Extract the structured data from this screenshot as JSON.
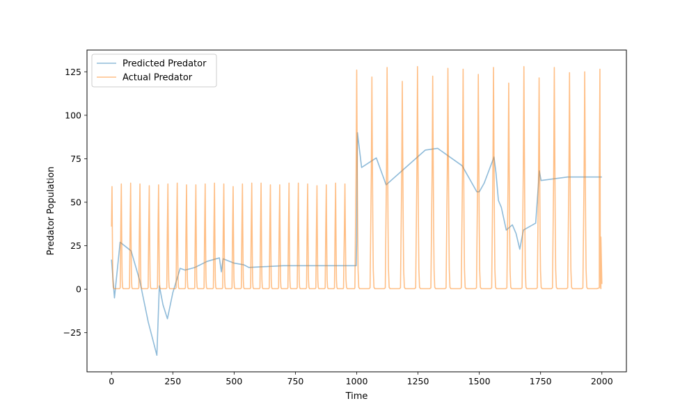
{
  "chart_data": {
    "type": "line",
    "title": "",
    "xlabel": "Time",
    "ylabel": "Predator Population",
    "xlim": [
      -100,
      2100
    ],
    "ylim": [
      -47.5,
      137.5
    ],
    "xticks": [
      {
        "value": 0,
        "label": "0"
      },
      {
        "value": 250,
        "label": "250"
      },
      {
        "value": 500,
        "label": "500"
      },
      {
        "value": 750,
        "label": "750"
      },
      {
        "value": 1000,
        "label": "1000"
      },
      {
        "value": 1250,
        "label": "1250"
      },
      {
        "value": 1500,
        "label": "1500"
      },
      {
        "value": 1750,
        "label": "1750"
      },
      {
        "value": 2000,
        "label": "2000"
      }
    ],
    "yticks": [
      {
        "value": -25,
        "label": "−25"
      },
      {
        "value": 0,
        "label": "0"
      },
      {
        "value": 25,
        "label": "25"
      },
      {
        "value": 50,
        "label": "50"
      },
      {
        "value": 75,
        "label": "75"
      },
      {
        "value": 100,
        "label": "100"
      },
      {
        "value": 125,
        "label": "125"
      }
    ],
    "grid": false,
    "legend_position": "top-left",
    "series": [
      {
        "name": "Predicted Predator",
        "color": "#1f77b4",
        "x": [
          0,
          12,
          35,
          80,
          115,
          150,
          185,
          195,
          210,
          228,
          250,
          280,
          300,
          340,
          390,
          440,
          448,
          455,
          500,
          540,
          560,
          700,
          850,
          998,
          1000,
          1003,
          1020,
          1080,
          1120,
          1280,
          1330,
          1430,
          1490,
          1500,
          1520,
          1560,
          1568,
          1578,
          1590,
          1610,
          1635,
          1650,
          1665,
          1680,
          1730,
          1745,
          1752,
          1860,
          2000
        ],
        "y": [
          17,
          -5,
          27,
          22,
          5,
          -19,
          -38,
          2,
          -9,
          -17,
          -2,
          12,
          11,
          12.5,
          16,
          18,
          10,
          17.5,
          15,
          14,
          12.5,
          13.5,
          13.5,
          13.5,
          28,
          90,
          70,
          75.5,
          60,
          80,
          81,
          71,
          56,
          56,
          61,
          76,
          67,
          51,
          47,
          34,
          37,
          32,
          23,
          34,
          38,
          68,
          62.5,
          64.5,
          64.5
        ]
      },
      {
        "name": "Actual Predator",
        "color": "#ff7f0e",
        "generator": "pulse-train",
        "baseline": 0.3,
        "start_value": 36,
        "end_value": 3,
        "peaks": [
          {
            "x": 2,
            "y": 59
          },
          {
            "x": 40,
            "y": 60.5
          },
          {
            "x": 78,
            "y": 61
          },
          {
            "x": 116,
            "y": 60.5
          },
          {
            "x": 154,
            "y": 59.5
          },
          {
            "x": 192,
            "y": 60
          },
          {
            "x": 230,
            "y": 60.5
          },
          {
            "x": 268,
            "y": 61
          },
          {
            "x": 306,
            "y": 60
          },
          {
            "x": 344,
            "y": 60
          },
          {
            "x": 382,
            "y": 60.5
          },
          {
            "x": 420,
            "y": 61
          },
          {
            "x": 458,
            "y": 60.5
          },
          {
            "x": 496,
            "y": 59
          },
          {
            "x": 534,
            "y": 60.5
          },
          {
            "x": 572,
            "y": 61
          },
          {
            "x": 610,
            "y": 61
          },
          {
            "x": 648,
            "y": 60
          },
          {
            "x": 686,
            "y": 60
          },
          {
            "x": 724,
            "y": 61
          },
          {
            "x": 762,
            "y": 61
          },
          {
            "x": 800,
            "y": 60.5
          },
          {
            "x": 838,
            "y": 59.5
          },
          {
            "x": 876,
            "y": 60
          },
          {
            "x": 914,
            "y": 61
          },
          {
            "x": 952,
            "y": 60.5
          },
          {
            "x": 1000,
            "y": 126
          },
          {
            "x": 1062,
            "y": 122
          },
          {
            "x": 1124,
            "y": 127.5
          },
          {
            "x": 1186,
            "y": 119.5
          },
          {
            "x": 1248,
            "y": 128
          },
          {
            "x": 1310,
            "y": 122.5
          },
          {
            "x": 1372,
            "y": 127
          },
          {
            "x": 1434,
            "y": 126.5
          },
          {
            "x": 1496,
            "y": 123.5
          },
          {
            "x": 1558,
            "y": 127.5
          },
          {
            "x": 1620,
            "y": 118.5
          },
          {
            "x": 1682,
            "y": 128
          },
          {
            "x": 1744,
            "y": 121.5
          },
          {
            "x": 1806,
            "y": 127.5
          },
          {
            "x": 1868,
            "y": 124.5
          },
          {
            "x": 1930,
            "y": 125
          },
          {
            "x": 1992,
            "y": 126.5
          }
        ]
      }
    ]
  }
}
